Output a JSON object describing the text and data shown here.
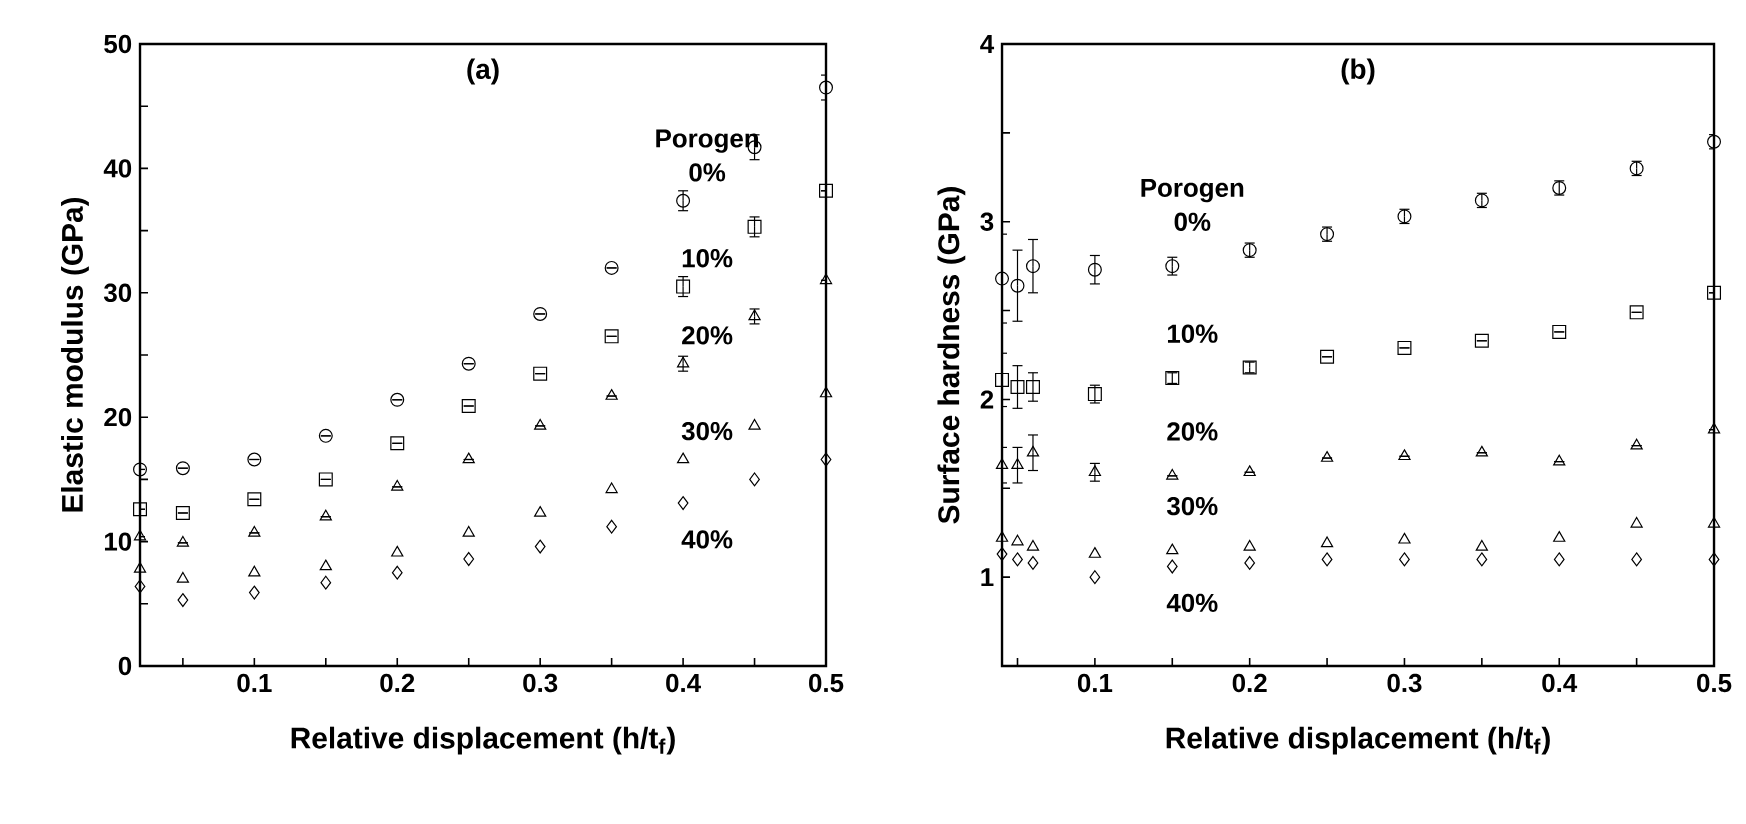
{
  "chart_data": [
    {
      "type": "scatter",
      "title": "(a)",
      "xlabel": "Relative displacement (h/t$_{f}$)",
      "ylabel": "Elastic modulus (GPa)",
      "xlim": [
        0.02,
        0.5
      ],
      "ylim": [
        0,
        50
      ],
      "xticks": [
        {
          "value": 0.05,
          "label": null
        },
        0.1,
        {
          "value": 0.15,
          "label": null
        },
        0.2,
        {
          "value": 0.25,
          "label": null
        },
        0.3,
        {
          "value": 0.35,
          "label": null
        },
        0.4,
        {
          "value": 0.45,
          "label": null
        },
        0.5
      ],
      "yticks": [
        0,
        {
          "value": 5,
          "label": null
        },
        10,
        {
          "value": 15,
          "label": null
        },
        20,
        {
          "value": 25,
          "label": null
        },
        30,
        {
          "value": 35,
          "label": null
        },
        40,
        {
          "value": 45,
          "label": null
        },
        50
      ],
      "x": [
        0.02,
        0.05,
        0.1,
        0.15,
        0.2,
        0.25,
        0.3,
        0.35,
        0.4,
        0.45,
        0.5
      ],
      "series": [
        {
          "name": "0%",
          "color": "#000000",
          "marker": "circle",
          "values": [
            15.8,
            15.9,
            16.6,
            18.5,
            21.4,
            24.3,
            28.3,
            32,
            37.4,
            41.7,
            46.5
          ],
          "errors": [
            null,
            null,
            null,
            null,
            null,
            null,
            null,
            null,
            0.8,
            1,
            1
          ]
        },
        {
          "name": "10%",
          "color": "#000000",
          "marker": "square",
          "values": [
            12.6,
            12.3,
            13.4,
            15,
            17.9,
            20.9,
            23.5,
            26.5,
            30.5,
            35.3,
            38.2
          ],
          "errors": [
            null,
            null,
            null,
            null,
            null,
            null,
            null,
            null,
            0.8,
            0.8,
            null
          ]
        },
        {
          "name": "20%",
          "color": "#000000",
          "marker": "triangle",
          "values": [
            10.4,
            9.9,
            10.7,
            12,
            14.4,
            16.6,
            19.3,
            21.7,
            24.3,
            28.1,
            31
          ],
          "errors": [
            null,
            null,
            null,
            null,
            null,
            null,
            null,
            null,
            0.6,
            0.6,
            null
          ]
        },
        {
          "name": "30%",
          "color": "#000000",
          "marker": "triangle down",
          "values": [
            7.8,
            7,
            7.5,
            8,
            9.1,
            10.7,
            12.3,
            14.2,
            16.6,
            19.3,
            21.9
          ]
        },
        {
          "name": "40%",
          "color": "#000000",
          "marker": "diamond",
          "values": [
            6.4,
            5.3,
            5.9,
            6.7,
            7.5,
            8.6,
            9.6,
            11.2,
            13.1,
            15,
            16.6
          ]
        }
      ],
      "annotations": [
        "Porogen"
      ]
    },
    {
      "type": "scatter",
      "title": "(b)",
      "xlabel": "Relative displacement (h/t$_{f}$)",
      "ylabel": "Surface hardness (GPa)",
      "xlim": [
        0.04,
        0.5
      ],
      "ylim": [
        0.5,
        4
      ],
      "xticks": [
        {
          "value": 0.05,
          "label": null
        },
        0.1,
        {
          "value": 0.15,
          "label": null
        },
        0.2,
        {
          "value": 0.25,
          "label": null
        },
        0.3,
        {
          "value": 0.35,
          "label": null
        },
        0.4,
        {
          "value": 0.45,
          "label": null
        },
        0.5
      ],
      "yticks": [
        1,
        {
          "value": 1.5,
          "label": null
        },
        2,
        {
          "value": 2.5,
          "label": null
        },
        3,
        {
          "value": 3.5,
          "label": null
        },
        4
      ],
      "x": [
        0.04,
        0.05,
        0.06,
        0.1,
        0.15,
        0.2,
        0.25,
        0.3,
        0.35,
        0.4,
        0.45,
        0.5
      ],
      "series": [
        {
          "name": "0%",
          "color": "#000000",
          "marker": "circle",
          "values": [
            2.68,
            2.64,
            2.75,
            2.73,
            2.75,
            2.84,
            2.93,
            3.03,
            3.12,
            3.19,
            3.3,
            3.45
          ],
          "errors": [
            0.25,
            0.2,
            0.15,
            0.08,
            0.05,
            0.04,
            0.04,
            0.04,
            0.04,
            0.04,
            0.04,
            0.04
          ]
        },
        {
          "name": "10%",
          "color": "#000000",
          "marker": "square",
          "values": [
            2.11,
            2.07,
            2.07,
            2.03,
            2.12,
            2.18,
            2.24,
            2.29,
            2.33,
            2.38,
            2.49,
            2.6
          ],
          "errors": [
            0.15,
            0.12,
            0.08,
            0.05,
            0.03,
            0.03,
            null,
            null,
            null,
            null,
            null,
            null
          ]
        },
        {
          "name": "20%",
          "color": "#000000",
          "marker": "triangle",
          "values": [
            1.63,
            1.63,
            1.7,
            1.59,
            1.57,
            1.59,
            1.67,
            1.68,
            1.7,
            1.65,
            1.74,
            1.83
          ],
          "errors": [
            0.1,
            0.1,
            0.1,
            0.05,
            null,
            null,
            null,
            null,
            null,
            null,
            null,
            null
          ]
        },
        {
          "name": "30%",
          "color": "#000000",
          "marker": "triangle down",
          "values": [
            1.22,
            1.2,
            1.17,
            1.13,
            1.15,
            1.17,
            1.19,
            1.21,
            1.17,
            1.22,
            1.3,
            1.3
          ]
        },
        {
          "name": "40%",
          "color": "#000000",
          "marker": "diamond",
          "values": [
            1.13,
            1.1,
            1.08,
            1.0,
            1.06,
            1.08,
            1.1,
            1.1,
            1.1,
            1.1,
            1.1,
            1.1
          ]
        }
      ],
      "annotations": [
        "Porogen"
      ]
    }
  ]
}
